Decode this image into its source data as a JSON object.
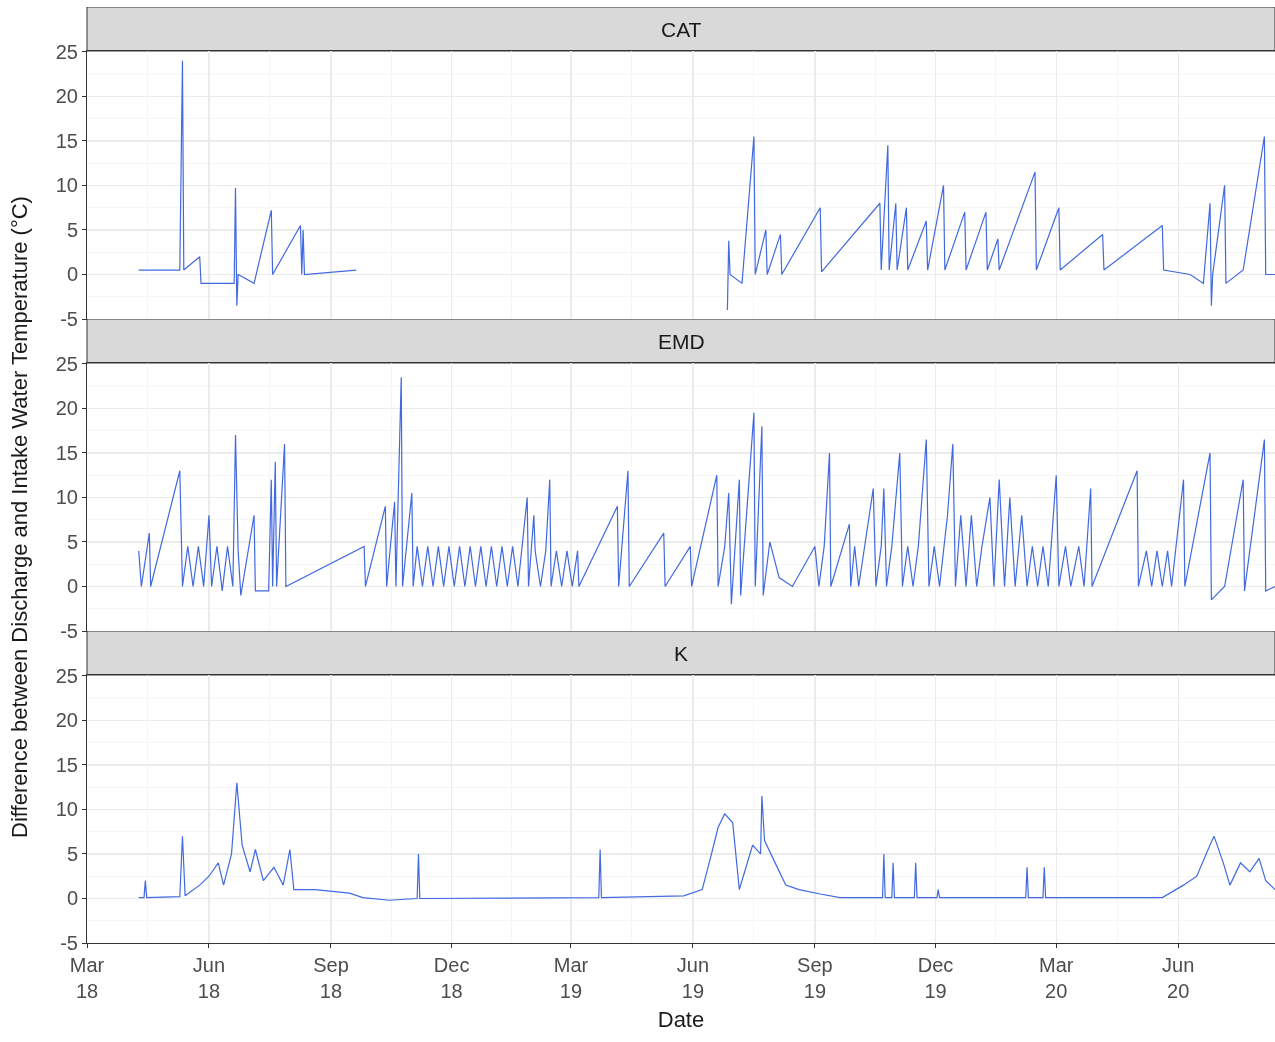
{
  "chart_data": [
    {
      "type": "line",
      "title": "CAT",
      "tick_labels": "y",
      "grid": true,
      "xlim": [
        "2018-03-01",
        "2020-08-13"
      ],
      "ylim": [
        -5,
        25.1
      ],
      "yticks": [
        -5,
        0,
        5,
        10,
        15,
        20,
        25
      ],
      "xticks": [
        {
          "value": "2018-03-01",
          "label": null
        },
        {
          "value": "2018-06-01",
          "label": null
        },
        {
          "value": "2018-09-01",
          "label": null
        },
        {
          "value": "2018-12-01",
          "label": null
        },
        {
          "value": "2019-03-01",
          "label": null
        },
        {
          "value": "2019-06-01",
          "label": null
        },
        {
          "value": "2019-09-01",
          "label": null
        },
        {
          "value": "2019-12-01",
          "label": null
        },
        {
          "value": "2020-03-01",
          "label": null
        },
        {
          "value": "2020-06-01",
          "label": null
        }
      ],
      "series": [
        {
          "color": "#4169e1",
          "x": [
            "2018-04-09",
            "2018-05-10",
            "2018-05-12",
            "2018-05-13",
            "2018-05-25",
            "2018-05-26",
            "2018-06-20",
            "2018-06-21",
            "2018-06-22",
            "2018-06-23",
            "2018-07-05",
            "2018-07-18",
            "2018-07-19",
            "2018-08-09",
            "2018-08-10",
            "2018-08-11",
            "2018-08-12",
            "2018-09-20",
            "2018-12-01",
            "2019-06-27",
            "2019-06-28",
            "2019-06-29",
            "2019-07-08",
            "2019-07-17",
            "2019-07-18",
            "2019-07-26",
            "2019-07-27",
            "2019-08-06",
            "2019-08-07",
            "2019-09-05",
            "2019-09-06",
            "2019-10-20",
            "2019-10-21",
            "2019-10-26",
            "2019-10-27",
            "2019-11-01",
            "2019-11-02",
            "2019-11-09",
            "2019-11-10",
            "2019-11-24",
            "2019-11-25",
            "2019-12-07",
            "2019-12-08",
            "2019-12-23",
            "2019-12-24",
            "2020-01-08",
            "2020-01-09",
            "2020-01-17",
            "2020-01-18",
            "2020-02-14",
            "2020-02-15",
            "2020-03-03",
            "2020-03-04",
            "2020-04-05",
            "2020-04-06",
            "2020-05-20",
            "2020-05-21",
            "2020-06-10",
            "2020-06-20",
            "2020-06-25",
            "2020-06-26",
            "2020-06-27",
            "2020-07-06",
            "2020-07-07",
            "2020-07-20",
            "2020-08-05",
            "2020-08-06",
            "2020-08-13"
          ],
          "values": [
            0.5,
            0.5,
            24,
            0.5,
            2,
            -1,
            -1,
            9.7,
            -3.5,
            0,
            -1,
            7.2,
            0,
            5.5,
            0,
            5,
            0,
            0.5,
            null,
            -4,
            3.8,
            0,
            -1,
            15.5,
            0,
            5,
            0,
            4.5,
            0,
            7.5,
            0.3,
            8,
            0.5,
            14.5,
            0.5,
            8,
            0.5,
            7.5,
            0.5,
            6,
            0.5,
            10,
            0.5,
            7,
            0.5,
            7,
            0.5,
            4,
            0.5,
            11.5,
            0.5,
            7.5,
            0.5,
            4.5,
            0.5,
            5.5,
            0.5,
            0,
            -1,
            8,
            -3.5,
            0,
            10,
            -1,
            0.5,
            15.5,
            0,
            0
          ]
        }
      ]
    },
    {
      "type": "line",
      "title": "EMD",
      "ylabel": "Difference between Discharge and Intake Water Temperature (°C)",
      "tick_labels": "y",
      "grid": true,
      "xlim": [
        "2018-03-01",
        "2020-08-13"
      ],
      "ylim": [
        -5,
        25.1
      ],
      "yticks": [
        -5,
        0,
        5,
        10,
        15,
        20,
        25
      ],
      "xticks": [
        {
          "value": "2018-03-01",
          "label": null
        },
        {
          "value": "2018-06-01",
          "label": null
        },
        {
          "value": "2018-09-01",
          "label": null
        },
        {
          "value": "2018-12-01",
          "label": null
        },
        {
          "value": "2019-03-01",
          "label": null
        },
        {
          "value": "2019-06-01",
          "label": null
        },
        {
          "value": "2019-09-01",
          "label": null
        },
        {
          "value": "2019-12-01",
          "label": null
        },
        {
          "value": "2020-03-01",
          "label": null
        },
        {
          "value": "2020-06-01",
          "label": null
        }
      ],
      "series": [
        {
          "color": "#4169e1",
          "x": [
            "2018-04-09",
            "2018-04-11",
            "2018-04-17",
            "2018-04-18",
            "2018-05-10",
            "2018-05-12",
            "2018-05-16",
            "2018-05-20",
            "2018-05-24",
            "2018-05-28",
            "2018-06-01",
            "2018-06-03",
            "2018-06-07",
            "2018-06-11",
            "2018-06-15",
            "2018-06-19",
            "2018-06-21",
            "2018-06-23",
            "2018-06-25",
            "2018-07-05",
            "2018-07-06",
            "2018-07-16",
            "2018-07-18",
            "2018-07-19",
            "2018-07-21",
            "2018-07-22",
            "2018-07-28",
            "2018-07-29",
            "2018-09-26",
            "2018-09-27",
            "2018-10-12",
            "2018-10-13",
            "2018-10-19",
            "2018-10-20",
            "2018-10-24",
            "2018-10-25",
            "2018-11-01",
            "2018-11-02",
            "2018-11-05",
            "2018-11-09",
            "2018-11-13",
            "2018-11-17",
            "2018-11-21",
            "2018-11-25",
            "2018-11-29",
            "2018-12-03",
            "2018-12-07",
            "2018-12-11",
            "2018-12-15",
            "2018-12-19",
            "2018-12-23",
            "2018-12-27",
            "2018-12-31",
            "2019-01-04",
            "2019-01-08",
            "2019-01-12",
            "2019-01-16",
            "2019-01-20",
            "2019-01-27",
            "2019-01-28",
            "2019-02-01",
            "2019-02-02",
            "2019-02-06",
            "2019-02-10",
            "2019-02-13",
            "2019-02-14",
            "2019-02-18",
            "2019-02-22",
            "2019-02-26",
            "2019-03-02",
            "2019-03-06",
            "2019-03-07",
            "2019-04-05",
            "2019-04-06",
            "2019-04-13",
            "2019-04-14",
            "2019-05-10",
            "2019-05-11",
            "2019-05-30",
            "2019-05-31",
            "2019-06-19",
            "2019-06-20",
            "2019-06-25",
            "2019-06-28",
            "2019-06-30",
            "2019-07-06",
            "2019-07-07",
            "2019-07-17",
            "2019-07-18",
            "2019-07-23",
            "2019-07-24",
            "2019-07-29",
            "2019-08-05",
            "2019-08-15",
            "2019-09-01",
            "2019-09-04",
            "2019-09-08",
            "2019-09-12",
            "2019-09-13",
            "2019-09-27",
            "2019-09-28",
            "2019-10-01",
            "2019-10-04",
            "2019-10-15",
            "2019-10-17",
            "2019-10-21",
            "2019-10-23",
            "2019-10-25",
            "2019-10-29",
            "2019-11-04",
            "2019-11-06",
            "2019-11-10",
            "2019-11-14",
            "2019-11-18",
            "2019-11-24",
            "2019-11-26",
            "2019-11-30",
            "2019-12-04",
            "2019-12-10",
            "2019-12-14",
            "2019-12-16",
            "2019-12-20",
            "2019-12-24",
            "2019-12-28",
            "2020-01-01",
            "2020-01-05",
            "2020-01-11",
            "2020-01-14",
            "2020-01-18",
            "2020-01-22",
            "2020-01-26",
            "2020-01-30",
            "2020-02-04",
            "2020-02-08",
            "2020-02-12",
            "2020-02-16",
            "2020-02-20",
            "2020-02-24",
            "2020-03-01",
            "2020-03-03",
            "2020-03-08",
            "2020-03-12",
            "2020-03-18",
            "2020-03-22",
            "2020-03-27",
            "2020-03-28",
            "2020-05-01",
            "2020-05-02",
            "2020-05-08",
            "2020-05-12",
            "2020-05-16",
            "2020-05-20",
            "2020-05-24",
            "2020-05-27",
            "2020-06-05",
            "2020-06-06",
            "2020-06-25",
            "2020-06-26",
            "2020-07-06",
            "2020-07-20",
            "2020-07-21",
            "2020-08-05",
            "2020-08-06",
            "2020-08-13"
          ],
          "values": [
            4,
            0,
            6,
            0,
            13,
            0,
            4.5,
            0,
            4.5,
            0,
            8,
            0,
            4.5,
            -0.5,
            4.5,
            0,
            17,
            4,
            -1,
            8,
            -0.5,
            -0.5,
            12,
            0,
            14,
            0,
            16,
            0,
            4.5,
            0,
            9,
            0,
            9.5,
            0,
            23.5,
            0,
            10.5,
            0,
            4.5,
            0,
            4.5,
            0,
            4.5,
            0,
            4.5,
            0,
            4.5,
            0,
            4.5,
            0,
            4.5,
            0,
            4.5,
            0,
            4.5,
            0,
            4.5,
            0,
            10,
            0,
            8,
            4,
            0,
            4,
            12,
            0,
            4,
            0,
            4,
            0,
            4,
            0,
            9,
            0,
            13,
            0,
            6,
            0,
            4.5,
            0,
            12.5,
            0,
            4.5,
            10.5,
            -2,
            12,
            -1,
            19.5,
            0,
            18,
            -1,
            5,
            1,
            0,
            4.5,
            0,
            4.5,
            15,
            0,
            7,
            0,
            4.5,
            0,
            11,
            0,
            4.5,
            11,
            0,
            4.5,
            15,
            0,
            4.5,
            0,
            4.5,
            16.5,
            0,
            4.5,
            0,
            8,
            16,
            0,
            8,
            0,
            8,
            0,
            4.5,
            10,
            0,
            12,
            0,
            10,
            0,
            8,
            0,
            4.5,
            0,
            4.5,
            0,
            12.5,
            0,
            4.5,
            0,
            4.5,
            0,
            11,
            0,
            13,
            0,
            4,
            0,
            4,
            0,
            4,
            0,
            12,
            0,
            15,
            -1.5,
            0,
            12,
            -0.5,
            16.5,
            -0.5,
            0
          ]
        }
      ]
    },
    {
      "type": "line",
      "title": "K",
      "xlabel": "Date",
      "grid": true,
      "xlim": [
        "2018-03-01",
        "2020-08-13"
      ],
      "ylim": [
        -5,
        25.1
      ],
      "yticks": [
        -5,
        0,
        5,
        10,
        15,
        20,
        25
      ],
      "xticks": [
        {
          "value": "2018-03-01",
          "label": "Mar\n18"
        },
        {
          "value": "2018-06-01",
          "label": "Jun\n18"
        },
        {
          "value": "2018-09-01",
          "label": "Sep\n18"
        },
        {
          "value": "2018-12-01",
          "label": "Dec\n18"
        },
        {
          "value": "2019-03-01",
          "label": "Mar\n19"
        },
        {
          "value": "2019-06-01",
          "label": "Jun\n19"
        },
        {
          "value": "2019-09-01",
          "label": "Sep\n19"
        },
        {
          "value": "2019-12-01",
          "label": "Dec\n19"
        },
        {
          "value": "2020-03-01",
          "label": "Mar\n20"
        },
        {
          "value": "2020-06-01",
          "label": "Jun\n20"
        }
      ],
      "series": [
        {
          "color": "#4169e1",
          "x": [
            "2018-04-09",
            "2018-04-13",
            "2018-04-14",
            "2018-04-15",
            "2018-05-10",
            "2018-05-12",
            "2018-05-14",
            "2018-05-25",
            "2018-06-01",
            "2018-06-08",
            "2018-06-12",
            "2018-06-18",
            "2018-06-22",
            "2018-06-26",
            "2018-07-02",
            "2018-07-06",
            "2018-07-12",
            "2018-07-20",
            "2018-07-27",
            "2018-08-01",
            "2018-08-04",
            "2018-08-20",
            "2018-09-15",
            "2018-09-25",
            "2018-10-15",
            "2018-11-05",
            "2018-11-06",
            "2018-11-07",
            "2019-03-22",
            "2019-03-23",
            "2019-03-24",
            "2019-05-25",
            "2019-06-08",
            "2019-06-15",
            "2019-06-20",
            "2019-06-25",
            "2019-07-01",
            "2019-07-06",
            "2019-07-10",
            "2019-07-16",
            "2019-07-22",
            "2019-07-23",
            "2019-07-25",
            "2019-08-02",
            "2019-08-10",
            "2019-08-20",
            "2019-09-05",
            "2019-09-20",
            "2019-10-22",
            "2019-10-23",
            "2019-10-24",
            "2019-10-29",
            "2019-10-30",
            "2019-10-31",
            "2019-11-15",
            "2019-11-16",
            "2019-11-17",
            "2019-12-02",
            "2019-12-03",
            "2019-12-04",
            "2020-02-07",
            "2020-02-08",
            "2020-02-09",
            "2020-02-20",
            "2020-02-21",
            "2020-02-22",
            "2020-05-20",
            "2020-06-05",
            "2020-06-15",
            "2020-06-25",
            "2020-06-28",
            "2020-07-05",
            "2020-07-10",
            "2020-07-18",
            "2020-07-25",
            "2020-08-01",
            "2020-08-06",
            "2020-08-13"
          ],
          "values": [
            0.1,
            0.1,
            2,
            0.1,
            0.2,
            7,
            0.3,
            1.5,
            2.5,
            4,
            1.5,
            5,
            13,
            6,
            3,
            5.5,
            2,
            3.5,
            1.5,
            5.5,
            1,
            1,
            0.6,
            0.1,
            -0.2,
            0,
            5,
            0,
            0.1,
            5.5,
            0.1,
            0.3,
            1,
            5,
            8,
            9.5,
            8.5,
            1,
            3,
            6,
            5,
            11.5,
            6.5,
            4,
            1.5,
            1,
            0.5,
            0.1,
            0.1,
            5,
            0.1,
            0.1,
            4,
            0.1,
            0.1,
            4,
            0.1,
            0.1,
            1,
            0.1,
            0.1,
            3.5,
            0.1,
            0.1,
            3.5,
            0.1,
            0.1,
            1.5,
            2.5,
            6,
            7,
            4,
            1.5,
            4,
            3,
            4.5,
            2,
            1
          ]
        }
      ]
    }
  ]
}
